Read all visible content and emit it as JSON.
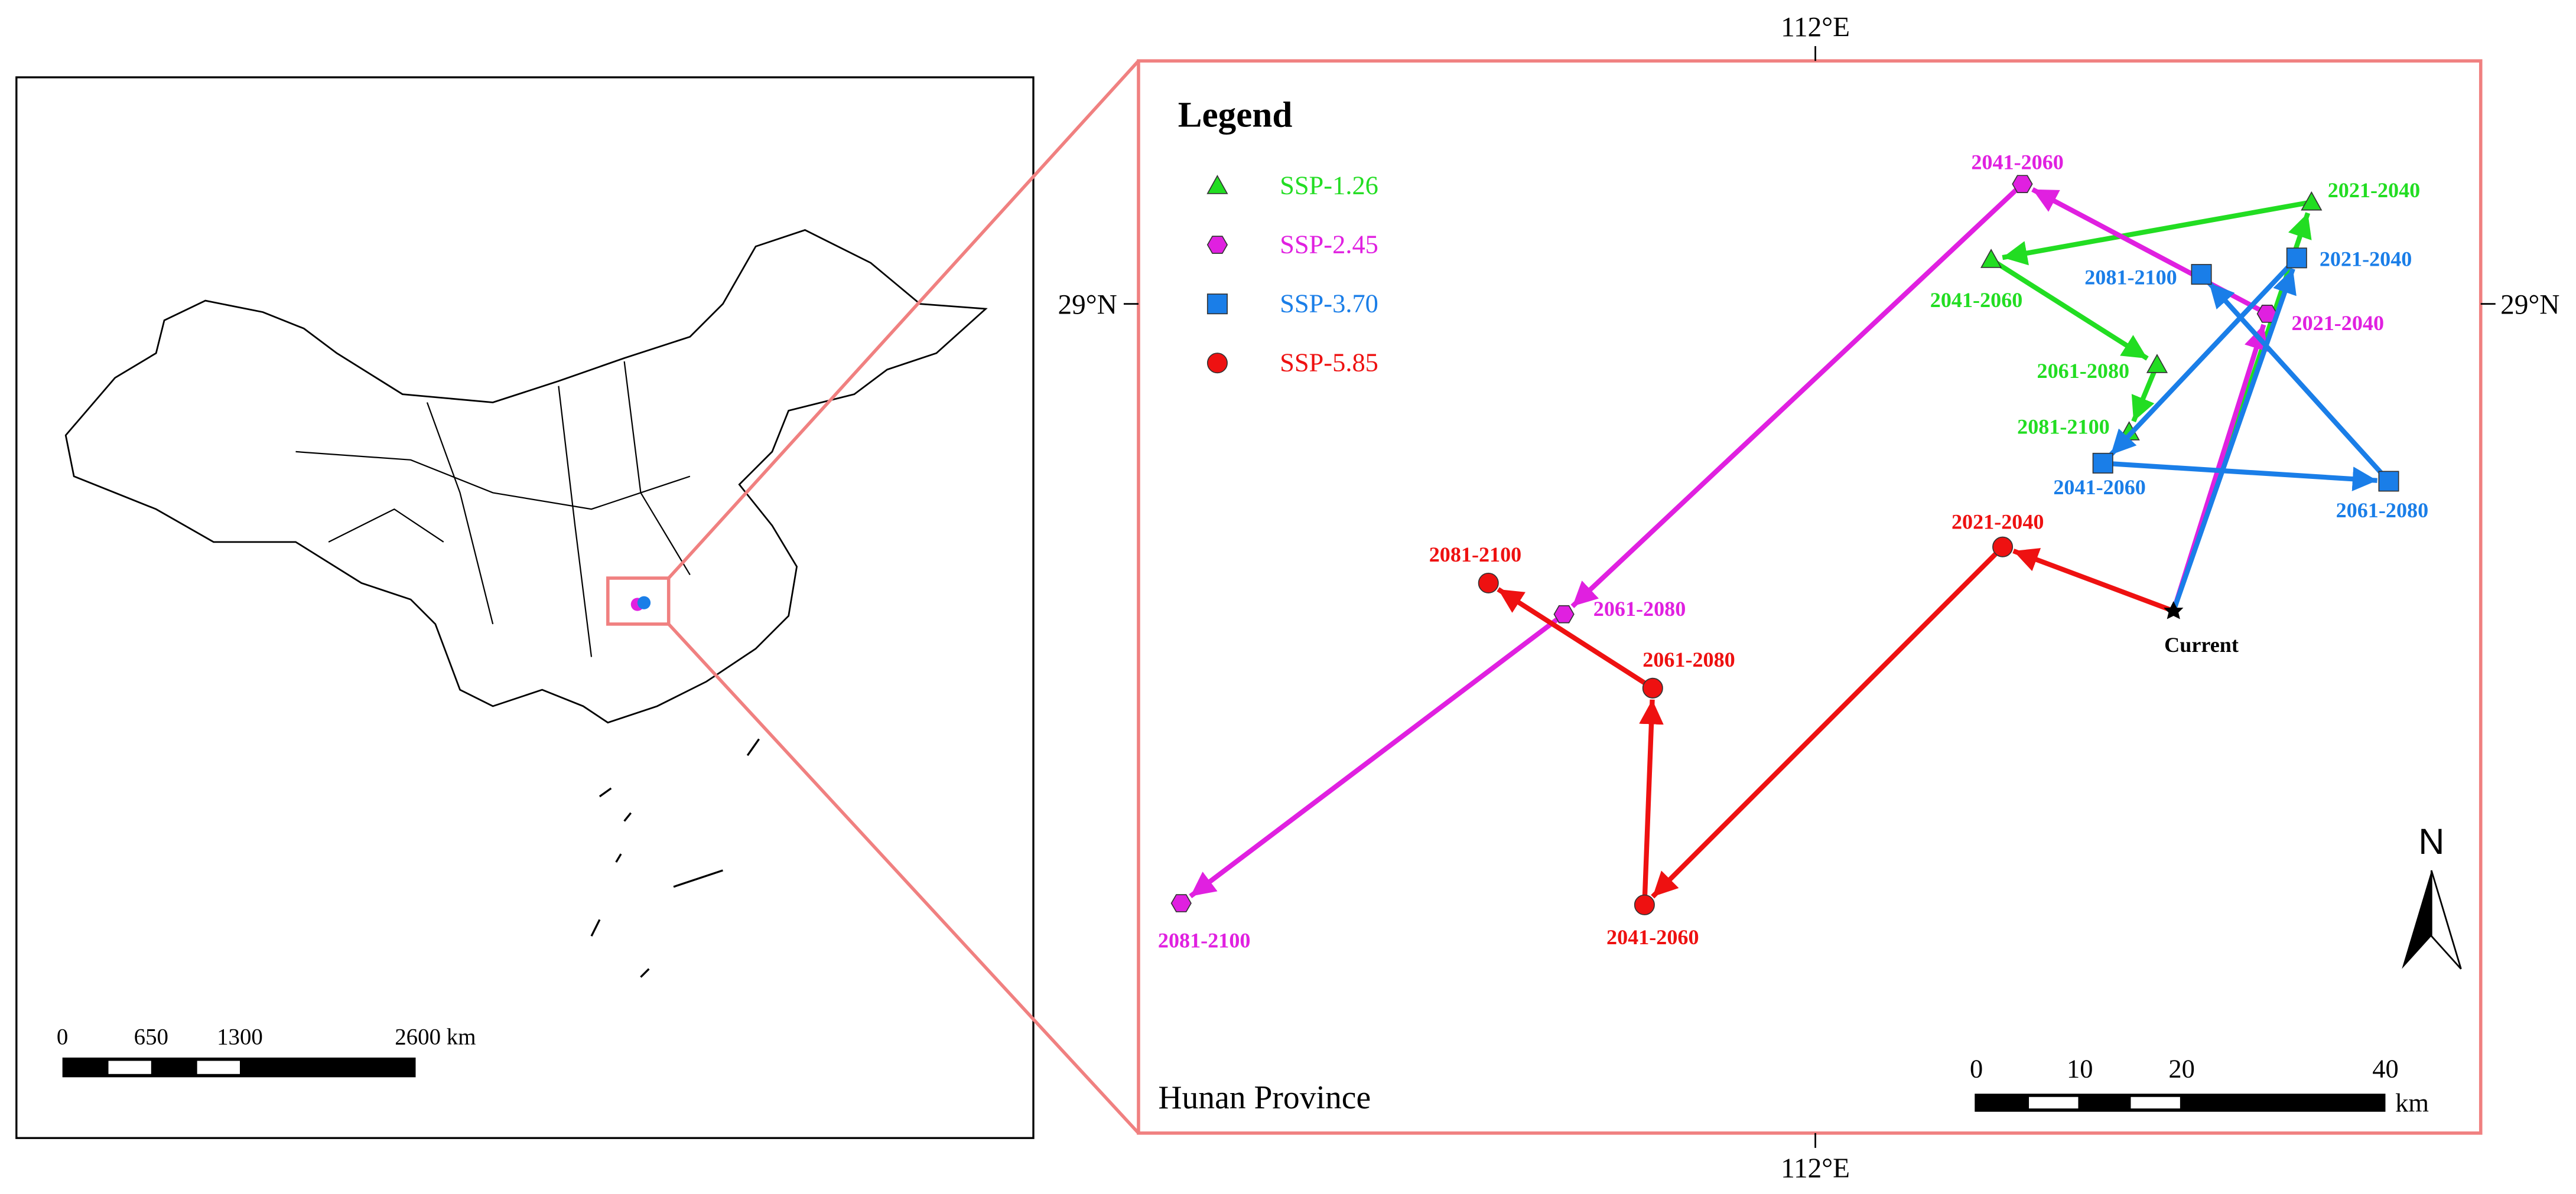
{
  "inset_map": {
    "scale_labels": [
      "0",
      "650",
      "1300",
      "2600 km"
    ]
  },
  "main_map": {
    "legend_title": "Legend",
    "region": "Hunan Province",
    "lon_label": "112°E",
    "lat_label": "29°N",
    "north": "N",
    "scale_labels": [
      "0",
      "10",
      "20",
      "40"
    ],
    "scale_unit": "km",
    "start_label": "Current",
    "series": [
      {
        "name": "SSP-1.26",
        "color": "#22dd22",
        "marker": "triangle",
        "periods": [
          "2021-2040",
          "2041-2060",
          "2061-2080",
          "2081-2100"
        ]
      },
      {
        "name": "SSP-2.45",
        "color": "#e020e0",
        "marker": "hexagon",
        "periods": [
          "2021-2040",
          "2041-2060",
          "2061-2080",
          "2081-2100"
        ]
      },
      {
        "name": "SSP-3.70",
        "color": "#1a7ee8",
        "marker": "square",
        "periods": [
          "2021-2040",
          "2041-2060",
          "2061-2080",
          "2081-2100"
        ]
      },
      {
        "name": "SSP-5.85",
        "color": "#ee1111",
        "marker": "circle",
        "periods": [
          "2021-2040",
          "2041-2060",
          "2061-2080",
          "2081-2100"
        ]
      }
    ]
  }
}
